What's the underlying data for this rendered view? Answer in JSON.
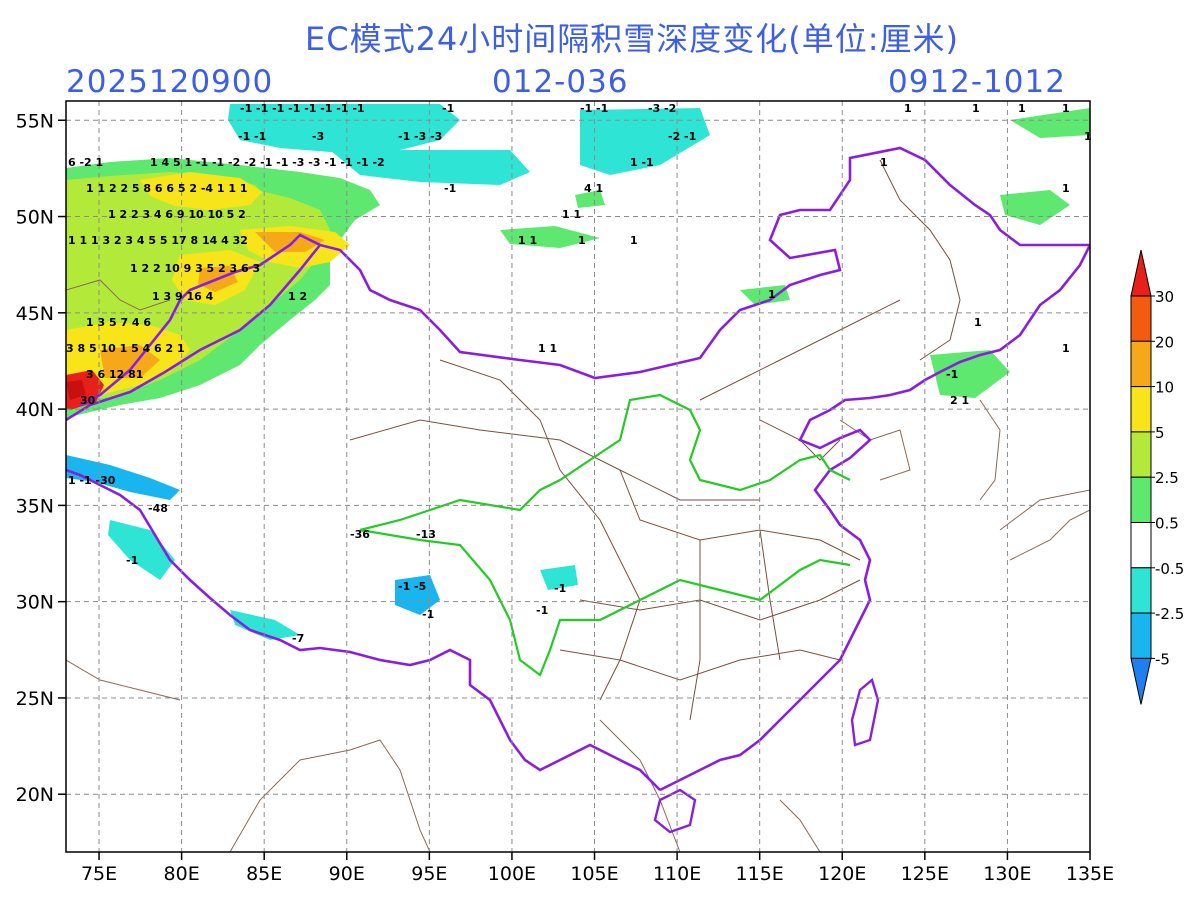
{
  "header": {
    "title": "EC模式24小时间隔积雪深度变化(单位:厘米)",
    "run_time": "2025120900",
    "lead_range": "012-036",
    "valid_range": "0912-1012"
  },
  "axes": {
    "lon_labels": [
      "75E",
      "80E",
      "85E",
      "90E",
      "95E",
      "100E",
      "105E",
      "110E",
      "115E",
      "120E",
      "125E",
      "130E",
      "135E"
    ],
    "lat_labels": [
      "55N",
      "50N",
      "45N",
      "40N",
      "35N",
      "30N",
      "25N",
      "20N"
    ],
    "lon_range": [
      73,
      135
    ],
    "lat_range": [
      17,
      56
    ],
    "grid": true
  },
  "colorbar": {
    "levels": [
      "30",
      "20",
      "10",
      "5",
      "2.5",
      "0.5",
      "-0.5",
      "-2.5",
      "-5"
    ],
    "colors": [
      "#e8201a",
      "#f45a10",
      "#f5a818",
      "#f7e51a",
      "#b3ea3a",
      "#5ee870",
      "#ffffff",
      "#2ee5d5",
      "#18b5ef",
      "#1e7ff0"
    ]
  },
  "map": {
    "annotations": [
      {
        "text": "-1 -1 -1 -1 -1 -1 -1 -1"
      },
      {
        "text": "-1"
      },
      {
        "text": "-1 -1"
      },
      {
        "text": "-3 -2"
      },
      {
        "text": "-1 -1"
      },
      {
        "text": "-3"
      },
      {
        "text": "-1 -3 -3"
      },
      {
        "text": "-2 -1"
      },
      {
        "text": "6 -2 1"
      },
      {
        "text": "1 4 5 1 -1 -1 -2 -2 -1 -1 -3 -3 -1 -1 -1 -2"
      },
      {
        "text": "1 -1"
      },
      {
        "text": "1 1 2 2 5 8 6 6 5 2 -4 1 1 1"
      },
      {
        "text": "-1"
      },
      {
        "text": "4 1"
      },
      {
        "text": "1 2 2 3 4 6 9 10 10 5 2"
      },
      {
        "text": "1 1"
      },
      {
        "text": "1 1 1 3 2 3 4 5 5 17 8 14 4 32"
      },
      {
        "text": "1 1"
      },
      {
        "text": "1"
      },
      {
        "text": "1 2 2 10 9 3 5 2 3 6 3"
      },
      {
        "text": "1 3 9 16 4"
      },
      {
        "text": "1 2"
      },
      {
        "text": "1 3 5 7 4 6"
      },
      {
        "text": "3 8 5 10 1 5 4 6 2 1"
      },
      {
        "text": "1 1"
      },
      {
        "text": "3 6 12 81"
      },
      {
        "text": "30"
      },
      {
        "text": "1 -1 -30"
      },
      {
        "text": "-48"
      },
      {
        "text": "-1"
      },
      {
        "text": "-36"
      },
      {
        "text": "-13"
      },
      {
        "text": "-1 -5"
      },
      {
        "text": "-1"
      },
      {
        "text": "-1"
      },
      {
        "text": "-1"
      },
      {
        "text": "-7"
      },
      {
        "text": "1"
      },
      {
        "text": "1"
      },
      {
        "text": "1"
      },
      {
        "text": "1"
      },
      {
        "text": "1"
      },
      {
        "text": "1"
      },
      {
        "text": "1"
      },
      {
        "text": "1"
      },
      {
        "text": "1"
      },
      {
        "text": "-1"
      },
      {
        "text": "2 1"
      },
      {
        "text": "1"
      },
      {
        "text": "1"
      }
    ]
  }
}
